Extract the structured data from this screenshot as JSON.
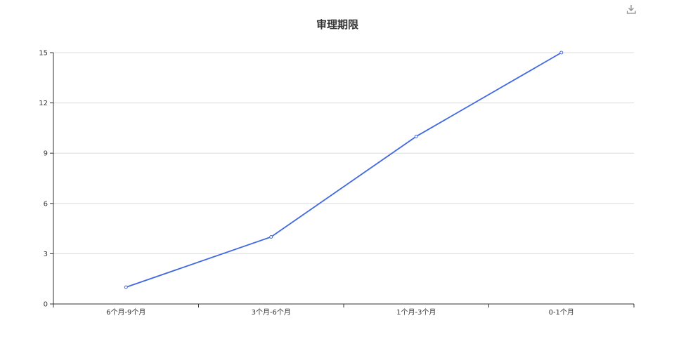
{
  "colors": {
    "series": "#4169e1",
    "grid": "#dcdcdc",
    "axis": "#333333",
    "icon": "#8c8c8c"
  },
  "toolbar": {
    "download_icon": "download-icon"
  },
  "chart_data": {
    "type": "line",
    "title": "审理期限",
    "categories": [
      "6个月-9个月",
      "3个月-6个月",
      "1个月-3个月",
      "0-1个月"
    ],
    "series": [
      {
        "values": [
          1,
          4,
          10,
          15
        ]
      }
    ],
    "xlabel": "",
    "ylabel": "",
    "ylim": [
      0,
      15
    ],
    "yticks": [
      0,
      3,
      6,
      9,
      12,
      15
    ],
    "grid": true,
    "legend": "none"
  }
}
